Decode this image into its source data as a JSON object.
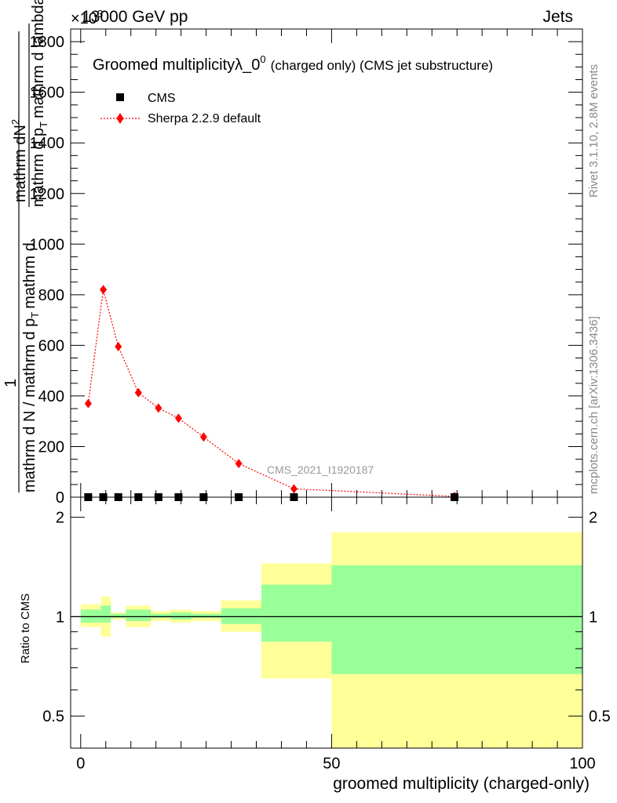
{
  "header": {
    "left": "13000 GeV pp",
    "right": "Jets",
    "exponent": "×10",
    "exponent_power": "3"
  },
  "title": {
    "main": "Groomed multiplicity",
    "lambda": "λ_0",
    "lambda_sup": "0",
    "sub": "(charged only) (CMS jet substructure)"
  },
  "ylabel_main": {
    "numerator_top": "mathrm d",
    "numerator_N": "N",
    "numerator_sup": "2",
    "denominator": "mathrm d p",
    "denominator_sub": "T",
    "denominator_rest": "mathrm d lambda",
    "prefix_one": "1",
    "prefix_den": "mathrm d N / mathrm d p",
    "prefix_den_sub": "T",
    "prefix_den_rest": "mathrm d"
  },
  "side_labels": {
    "top": "Rivet 3.1.10,  2.8M events",
    "bottom": "mcplots.cern.ch [arXiv:1306.3436]"
  },
  "watermark": "CMS_2021_I1920187",
  "legend": {
    "cms": "CMS",
    "sherpa": "Sherpa 2.2.9 default"
  },
  "colors": {
    "sherpa": "#ff0000",
    "band_yellow": "#ffff99",
    "band_green": "#99ff99",
    "axis": "#000000"
  },
  "ratio": {
    "ylabel": "Ratio to CMS",
    "ytick_labels": [
      "0.5",
      "1",
      "2"
    ]
  },
  "xlabel": "groomed multiplicity (charged-only)",
  "chart_data": [
    {
      "type": "scatter",
      "title": "Groomed multiplicityλ_0^0 (charged only) (CMS jet substructure)",
      "xlabel": "groomed multiplicity (charged-only)",
      "ylabel": "1/(mathrm d N / mathrm d p_T mathrm d) mathrm d^2N/(mathrm d p_T mathrm d lambda)",
      "y_multiplier": "×10^3",
      "xlim": [
        -2,
        100
      ],
      "ylim": [
        0,
        1850
      ],
      "x_tick_labels": [
        "0",
        "50",
        "100"
      ],
      "y_tick_labels": [
        "0",
        "200",
        "400",
        "600",
        "800",
        "1000",
        "1200",
        "1400",
        "1600",
        "1800"
      ],
      "series": [
        {
          "name": "CMS",
          "marker": "square",
          "x": [
            1.5,
            4.5,
            7.5,
            11.5,
            15.5,
            19.5,
            24.5,
            31.5,
            42.5,
            74.5
          ],
          "y": [
            0,
            0,
            0,
            0,
            0,
            0,
            0,
            0,
            0,
            0
          ]
        },
        {
          "name": "Sherpa 2.2.9 default",
          "marker": "diamond",
          "line": "dotted",
          "x": [
            1.5,
            4.5,
            7.5,
            11.5,
            15.5,
            19.5,
            24.5,
            31.5,
            42.5,
            74.5
          ],
          "y": [
            370,
            820,
            595,
            413,
            352,
            312,
            238,
            133,
            33,
            3
          ]
        }
      ]
    },
    {
      "type": "area",
      "title": "",
      "ylabel": "Ratio to CMS",
      "scale": "log",
      "ylim": [
        0.4,
        2.3
      ],
      "y_tick_labels": [
        "0.5",
        "1",
        "2"
      ],
      "bins": [
        [
          0,
          4
        ],
        [
          4,
          6
        ],
        [
          6,
          9
        ],
        [
          9,
          14
        ],
        [
          14,
          18
        ],
        [
          18,
          22
        ],
        [
          22,
          28
        ],
        [
          28,
          36
        ],
        [
          36,
          50
        ],
        [
          50,
          100
        ]
      ],
      "series": [
        {
          "name": "yellow band",
          "lower": [
            0.93,
            0.87,
            0.98,
            0.93,
            0.97,
            0.96,
            0.97,
            0.9,
            0.65,
            0.35
          ],
          "upper": [
            1.09,
            1.15,
            1.03,
            1.08,
            1.04,
            1.05,
            1.04,
            1.12,
            1.45,
            1.8
          ]
        },
        {
          "name": "green band",
          "lower": [
            0.96,
            0.96,
            0.99,
            0.97,
            0.99,
            0.98,
            0.99,
            0.95,
            0.84,
            0.67
          ],
          "upper": [
            1.05,
            1.08,
            1.02,
            1.05,
            1.02,
            1.03,
            1.02,
            1.06,
            1.25,
            1.43
          ]
        }
      ],
      "ratio_line": 1
    }
  ]
}
